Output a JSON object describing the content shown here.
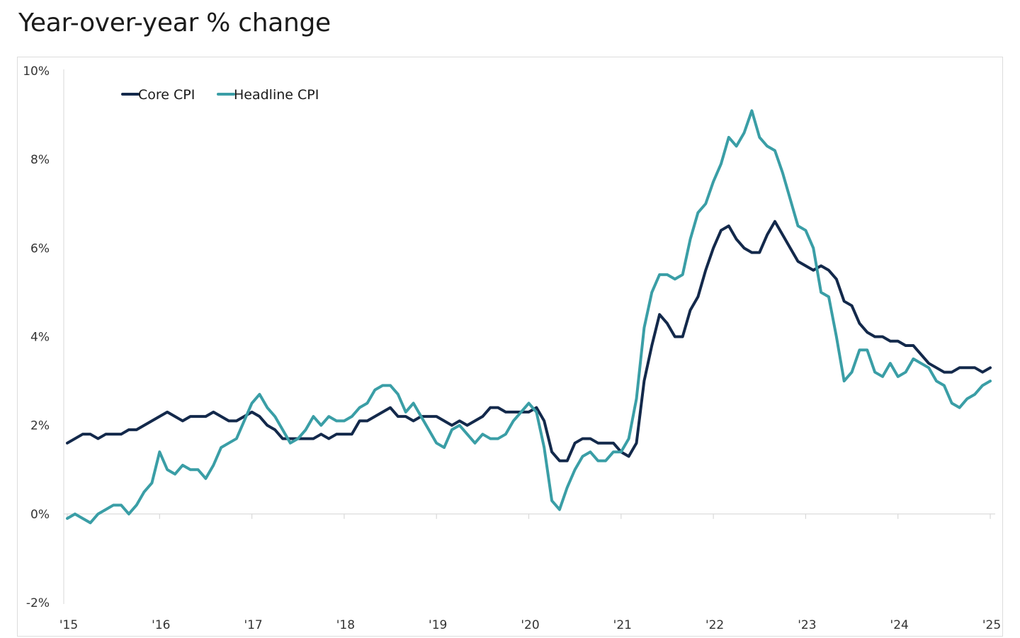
{
  "page": {
    "title": "Year-over-year % change"
  },
  "colors": {
    "core": "#13294b",
    "headline": "#3a9ea6",
    "axis": "#d9d9d9",
    "frame": "#dcdcdc"
  },
  "chart_data": {
    "type": "line",
    "title": "Year-over-year % change",
    "xlabel": "",
    "ylabel": "",
    "x_start": "2015-01",
    "x_step": "month",
    "xlim": [
      2015.0,
      2025.0
    ],
    "ylim": [
      -2,
      10
    ],
    "y_ticks": [
      10,
      8,
      6,
      4,
      2,
      0,
      -2
    ],
    "y_tick_labels": [
      "10%",
      "8%",
      "6%",
      "4%",
      "2%",
      "0%",
      "-2%"
    ],
    "x_ticks": [
      2015,
      2016,
      2017,
      2018,
      2019,
      2020,
      2021,
      2022,
      2023,
      2024,
      2025
    ],
    "x_tick_labels": [
      "'15",
      "'16",
      "'17",
      "'18",
      "'19",
      "'20",
      "'21",
      "'22",
      "'23",
      "'24",
      "'25"
    ],
    "grid": false,
    "legend_position": "top-left",
    "series": [
      {
        "name": "Core CPI",
        "color_key": "core",
        "values": [
          1.6,
          1.7,
          1.8,
          1.8,
          1.7,
          1.8,
          1.8,
          1.8,
          1.9,
          1.9,
          2.0,
          2.1,
          2.2,
          2.3,
          2.2,
          2.1,
          2.2,
          2.2,
          2.2,
          2.3,
          2.2,
          2.1,
          2.1,
          2.2,
          2.3,
          2.2,
          2.0,
          1.9,
          1.7,
          1.7,
          1.7,
          1.7,
          1.7,
          1.8,
          1.7,
          1.8,
          1.8,
          1.8,
          2.1,
          2.1,
          2.2,
          2.3,
          2.4,
          2.2,
          2.2,
          2.1,
          2.2,
          2.2,
          2.2,
          2.1,
          2.0,
          2.1,
          2.0,
          2.1,
          2.2,
          2.4,
          2.4,
          2.3,
          2.3,
          2.3,
          2.3,
          2.4,
          2.1,
          1.4,
          1.2,
          1.2,
          1.6,
          1.7,
          1.7,
          1.6,
          1.6,
          1.6,
          1.4,
          1.3,
          1.6,
          3.0,
          3.8,
          4.5,
          4.3,
          4.0,
          4.0,
          4.6,
          4.9,
          5.5,
          6.0,
          6.4,
          6.5,
          6.2,
          6.0,
          5.9,
          5.9,
          6.3,
          6.6,
          6.3,
          6.0,
          5.7,
          5.6,
          5.5,
          5.6,
          5.5,
          5.3,
          4.8,
          4.7,
          4.3,
          4.1,
          4.0,
          4.0,
          3.9,
          3.9,
          3.8,
          3.8,
          3.6,
          3.4,
          3.3,
          3.2,
          3.2,
          3.3,
          3.3,
          3.3,
          3.2,
          3.3
        ]
      },
      {
        "name": "Headline CPI",
        "color_key": "headline",
        "values": [
          -0.1,
          0.0,
          -0.1,
          -0.2,
          0.0,
          0.1,
          0.2,
          0.2,
          0.0,
          0.2,
          0.5,
          0.7,
          1.4,
          1.0,
          0.9,
          1.1,
          1.0,
          1.0,
          0.8,
          1.1,
          1.5,
          1.6,
          1.7,
          2.1,
          2.5,
          2.7,
          2.4,
          2.2,
          1.9,
          1.6,
          1.7,
          1.9,
          2.2,
          2.0,
          2.2,
          2.1,
          2.1,
          2.2,
          2.4,
          2.5,
          2.8,
          2.9,
          2.9,
          2.7,
          2.3,
          2.5,
          2.2,
          1.9,
          1.6,
          1.5,
          1.9,
          2.0,
          1.8,
          1.6,
          1.8,
          1.7,
          1.7,
          1.8,
          2.1,
          2.3,
          2.5,
          2.3,
          1.5,
          0.3,
          0.1,
          0.6,
          1.0,
          1.3,
          1.4,
          1.2,
          1.2,
          1.4,
          1.4,
          1.7,
          2.6,
          4.2,
          5.0,
          5.4,
          5.4,
          5.3,
          5.4,
          6.2,
          6.8,
          7.0,
          7.5,
          7.9,
          8.5,
          8.3,
          8.6,
          9.1,
          8.5,
          8.3,
          8.2,
          7.7,
          7.1,
          6.5,
          6.4,
          6.0,
          5.0,
          4.9,
          4.0,
          3.0,
          3.2,
          3.7,
          3.7,
          3.2,
          3.1,
          3.4,
          3.1,
          3.2,
          3.5,
          3.4,
          3.3,
          3.0,
          2.9,
          2.5,
          2.4,
          2.6,
          2.7,
          2.9,
          3.0
        ]
      }
    ]
  }
}
